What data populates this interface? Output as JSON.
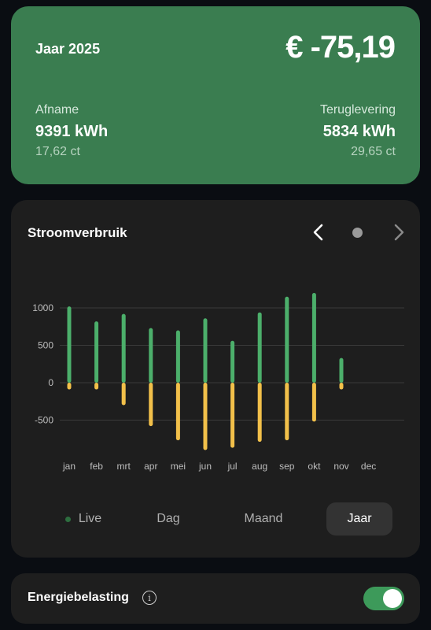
{
  "summary": {
    "year_title": "Jaar 2025",
    "total": "€ -75,19",
    "afname": {
      "label": "Afname",
      "value": "9391 kWh",
      "price": "17,62 ct"
    },
    "teruglevering": {
      "label": "Teruglevering",
      "value": "5834 kWh",
      "price": "29,65 ct"
    }
  },
  "chart": {
    "title": "Stroomverbruik",
    "nav": {
      "prev": "chevron-left-icon",
      "indicator": "dot-icon",
      "next": "chevron-right-icon"
    }
  },
  "chart_data": {
    "type": "bar",
    "categories": [
      "jan",
      "feb",
      "mrt",
      "apr",
      "mei",
      "jun",
      "jul",
      "aug",
      "sep",
      "okt",
      "nov",
      "dec"
    ],
    "series": [
      {
        "values": [
          1020,
          820,
          920,
          730,
          700,
          860,
          560,
          940,
          1150,
          1200,
          330,
          0
        ]
      },
      {
        "values": [
          -90,
          -90,
          -300,
          -580,
          -770,
          -900,
          -870,
          -790,
          -770,
          -520,
          -90,
          0
        ]
      }
    ],
    "yticks": [
      1000,
      500,
      0,
      -500
    ],
    "ylim": [
      -1000,
      1250
    ],
    "grid": true,
    "colors": {
      "afname": "#4caf6b",
      "teruglevering": "#f2c04a"
    }
  },
  "periods": {
    "live": "Live",
    "dag": "Dag",
    "maand": "Maand",
    "jaar": "Jaar",
    "active": "Jaar"
  },
  "tax": {
    "label": "Energiebelasting",
    "icon": "info-icon",
    "enabled": true
  }
}
